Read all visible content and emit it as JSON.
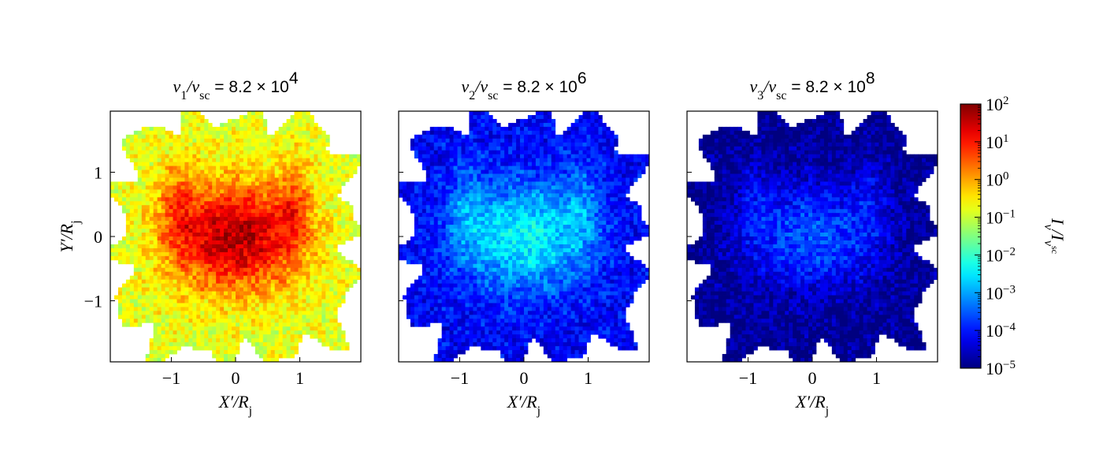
{
  "chart_data": {
    "type": "heatmap",
    "panels": [
      {
        "title": {
          "prefix": "ν",
          "sub": "1",
          "mid": "/ν",
          "sub2": "sc",
          "eq": " = 8.2 × 10",
          "exp": "4"
        },
        "xlabel": "X′/R",
        "xlabel_sub": "j",
        "ylabel": "Y′/R",
        "ylabel_sub": "j",
        "log10_peak": 1.6,
        "log10_edge": -1.0,
        "show_yticks": true
      },
      {
        "title": {
          "prefix": "ν",
          "sub": "2",
          "mid": "/ν",
          "sub2": "sc",
          "eq": " = 8.2 × 10",
          "exp": "6"
        },
        "xlabel": "X′/R",
        "xlabel_sub": "j",
        "log10_peak": -2.4,
        "log10_edge": -4.3,
        "show_yticks": false
      },
      {
        "title": {
          "prefix": "ν",
          "sub": "3",
          "mid": "/ν",
          "sub2": "sc",
          "eq": " = 8.2 × 10",
          "exp": "8"
        },
        "xlabel": "X′/R",
        "xlabel_sub": "j",
        "log10_peak": -3.6,
        "log10_edge": -5.0,
        "show_yticks": false
      }
    ],
    "xlim": [
      -1.95,
      1.95
    ],
    "ylim": [
      -1.95,
      1.95
    ],
    "x_ticks": [
      -1,
      0,
      1
    ],
    "x_tick_labels": [
      "−1",
      "0",
      "1"
    ],
    "y_ticks": [
      -1,
      0,
      1
    ],
    "y_tick_labels": [
      "−1",
      "0",
      "1"
    ],
    "colorbar": {
      "label": "I",
      "label_sub": "ν",
      "label_mid": "/I",
      "label_sub2": "ν",
      "label_sub3": "sc",
      "scale": "log",
      "range": [
        1e-05,
        100.0
      ],
      "ticks": [
        {
          "base": "10",
          "exp": "2",
          "log": 2
        },
        {
          "base": "10",
          "exp": "1",
          "log": 1
        },
        {
          "base": "10",
          "exp": "0",
          "log": 0
        },
        {
          "base": "10",
          "exp": "−1",
          "log": -1
        },
        {
          "base": "10",
          "exp": "−2",
          "log": -2
        },
        {
          "base": "10",
          "exp": "−3",
          "log": -3
        },
        {
          "base": "10",
          "exp": "−4",
          "log": -4
        },
        {
          "base": "10",
          "exp": "−5",
          "log": -5
        }
      ],
      "colormap": "jet"
    },
    "grid": false
  }
}
